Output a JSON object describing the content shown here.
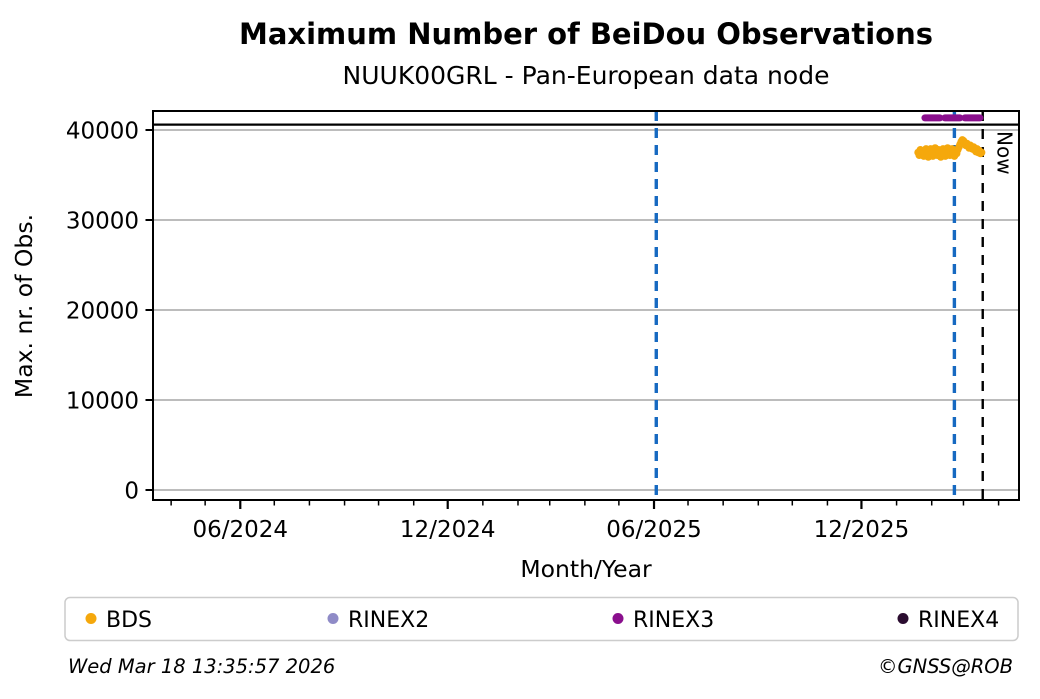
{
  "footer": {
    "timestamp": "Wed Mar 18 13:35:57 2026",
    "copyright": "©GNSS@ROB"
  },
  "chart_data": {
    "type": "scatter",
    "title": "Maximum Number of BeiDou Observations",
    "subtitle": "NUUK00GRL - Pan-European data node",
    "xlabel": "Month/Year",
    "ylabel": "Max. nr. of Obs.",
    "x_domain": [
      "2024-03-16",
      "2026-04-19"
    ],
    "ylim": [
      -1111,
      42111
    ],
    "y_ticks": [
      0,
      10000,
      20000,
      30000,
      40000
    ],
    "x_major_ticks": [
      {
        "date": "2024-06-01",
        "label": "06/2024"
      },
      {
        "date": "2024-12-01",
        "label": "12/2024"
      },
      {
        "date": "2025-06-01",
        "label": "06/2025"
      },
      {
        "date": "2025-12-01",
        "label": "12/2025"
      }
    ],
    "x_minor_tick_interval": "month",
    "grid": "horizontal",
    "colors": {
      "grid": "#b2b2b2",
      "axis": "#000000",
      "event_line": "#1669c1"
    },
    "reference_line": {
      "value": 40600,
      "color": "#000000",
      "style": "solid"
    },
    "event_lines": [
      {
        "date": "2025-06-03",
        "color": "#1669c1",
        "style": "dashed"
      },
      {
        "date": "2026-02-21",
        "color": "#1669c1",
        "style": "dashed"
      }
    ],
    "now_line": {
      "date": "2026-03-18",
      "label": "Now",
      "color": "#000000",
      "style": "dashed"
    },
    "legend": {
      "position": "bottom"
    },
    "series": [
      {
        "name": "BDS",
        "color": "#f5a80c",
        "type": "points",
        "points": [
          [
            "2026-01-20",
            37500
          ],
          [
            "2026-01-21",
            37200
          ],
          [
            "2026-01-22",
            37800
          ],
          [
            "2026-01-23",
            37300
          ],
          [
            "2026-01-24",
            37600
          ],
          [
            "2026-01-25",
            37100
          ],
          [
            "2026-01-26",
            37500
          ],
          [
            "2026-01-27",
            37900
          ],
          [
            "2026-01-28",
            37300
          ],
          [
            "2026-01-29",
            37000
          ],
          [
            "2026-01-30",
            37600
          ],
          [
            "2026-01-31",
            37900
          ],
          [
            "2026-02-01",
            37400
          ],
          [
            "2026-02-02",
            37100
          ],
          [
            "2026-02-03",
            37700
          ],
          [
            "2026-02-04",
            38000
          ],
          [
            "2026-02-05",
            37500
          ],
          [
            "2026-02-06",
            37200
          ],
          [
            "2026-02-07",
            37800
          ],
          [
            "2026-02-08",
            37400
          ],
          [
            "2026-02-09",
            37000
          ],
          [
            "2026-02-10",
            37600
          ],
          [
            "2026-02-11",
            37900
          ],
          [
            "2026-02-12",
            37300
          ],
          [
            "2026-02-13",
            37100
          ],
          [
            "2026-02-14",
            37700
          ],
          [
            "2026-02-15",
            38000
          ],
          [
            "2026-02-16",
            37500
          ],
          [
            "2026-02-17",
            37200
          ],
          [
            "2026-02-18",
            37600
          ],
          [
            "2026-02-19",
            37900
          ],
          [
            "2026-02-20",
            37400
          ],
          [
            "2026-02-21",
            37100
          ],
          [
            "2026-02-22",
            37700
          ],
          [
            "2026-02-23",
            37400
          ],
          [
            "2026-02-24",
            37800
          ],
          [
            "2026-02-25",
            38100
          ],
          [
            "2026-02-26",
            38400
          ],
          [
            "2026-02-27",
            38700
          ],
          [
            "2026-02-28",
            38900
          ],
          [
            "2026-03-01",
            38800
          ],
          [
            "2026-03-02",
            38600
          ],
          [
            "2026-03-03",
            38300
          ],
          [
            "2026-03-04",
            38500
          ],
          [
            "2026-03-05",
            38200
          ],
          [
            "2026-03-06",
            38000
          ],
          [
            "2026-03-07",
            38300
          ],
          [
            "2026-03-08",
            38100
          ],
          [
            "2026-03-09",
            37900
          ],
          [
            "2026-03-10",
            38100
          ],
          [
            "2026-03-11",
            37800
          ],
          [
            "2026-03-12",
            37600
          ],
          [
            "2026-03-13",
            37900
          ],
          [
            "2026-03-14",
            37500
          ],
          [
            "2026-03-15",
            37700
          ],
          [
            "2026-03-16",
            37400
          ],
          [
            "2026-03-17",
            37500
          ]
        ]
      },
      {
        "name": "RINEX2",
        "color": "#8f8bc7",
        "type": "points",
        "points": []
      },
      {
        "name": "RINEX3",
        "color": "#8a0f8d",
        "type": "thick-line",
        "value": 41350,
        "start": "2026-01-26",
        "end": "2026-03-18",
        "points": []
      },
      {
        "name": "RINEX4",
        "color": "#2b0d30",
        "type": "points",
        "points": []
      }
    ]
  }
}
